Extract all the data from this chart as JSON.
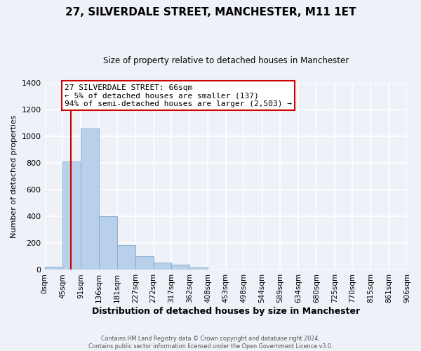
{
  "title": "27, SILVERDALE STREET, MANCHESTER, M11 1ET",
  "subtitle": "Size of property relative to detached houses in Manchester",
  "xlabel": "Distribution of detached houses by size in Manchester",
  "ylabel": "Number of detached properties",
  "bar_color": "#b8d0ea",
  "bar_edge_color": "#8ab0d0",
  "background_color": "#eef2f8",
  "grid_color": "#ffffff",
  "annotation_box_color": "#cc0000",
  "vline_color": "#cc0000",
  "vline_x": 66,
  "annotation_text_line1": "27 SILVERDALE STREET: 66sqm",
  "annotation_text_line2": "← 5% of detached houses are smaller (137)",
  "annotation_text_line3": "94% of semi-detached houses are larger (2,503) →",
  "footer_line1": "Contains HM Land Registry data © Crown copyright and database right 2024.",
  "footer_line2": "Contains public sector information licensed under the Open Government Licence v3.0.",
  "bin_edges": [
    0,
    45,
    91,
    136,
    181,
    227,
    272,
    317,
    362,
    408,
    453,
    498,
    544,
    589,
    634,
    680,
    725,
    770,
    815,
    861,
    906
  ],
  "bin_labels": [
    "0sqm",
    "45sqm",
    "91sqm",
    "136sqm",
    "181sqm",
    "227sqm",
    "272sqm",
    "317sqm",
    "362sqm",
    "408sqm",
    "453sqm",
    "498sqm",
    "544sqm",
    "589sqm",
    "634sqm",
    "680sqm",
    "725sqm",
    "770sqm",
    "815sqm",
    "861sqm",
    "906sqm"
  ],
  "bar_heights": [
    25,
    810,
    1060,
    400,
    185,
    100,
    55,
    38,
    20,
    0,
    0,
    0,
    0,
    0,
    0,
    0,
    0,
    0,
    0,
    0
  ],
  "ylim": [
    0,
    1400
  ],
  "yticks": [
    0,
    200,
    400,
    600,
    800,
    1000,
    1200,
    1400
  ]
}
